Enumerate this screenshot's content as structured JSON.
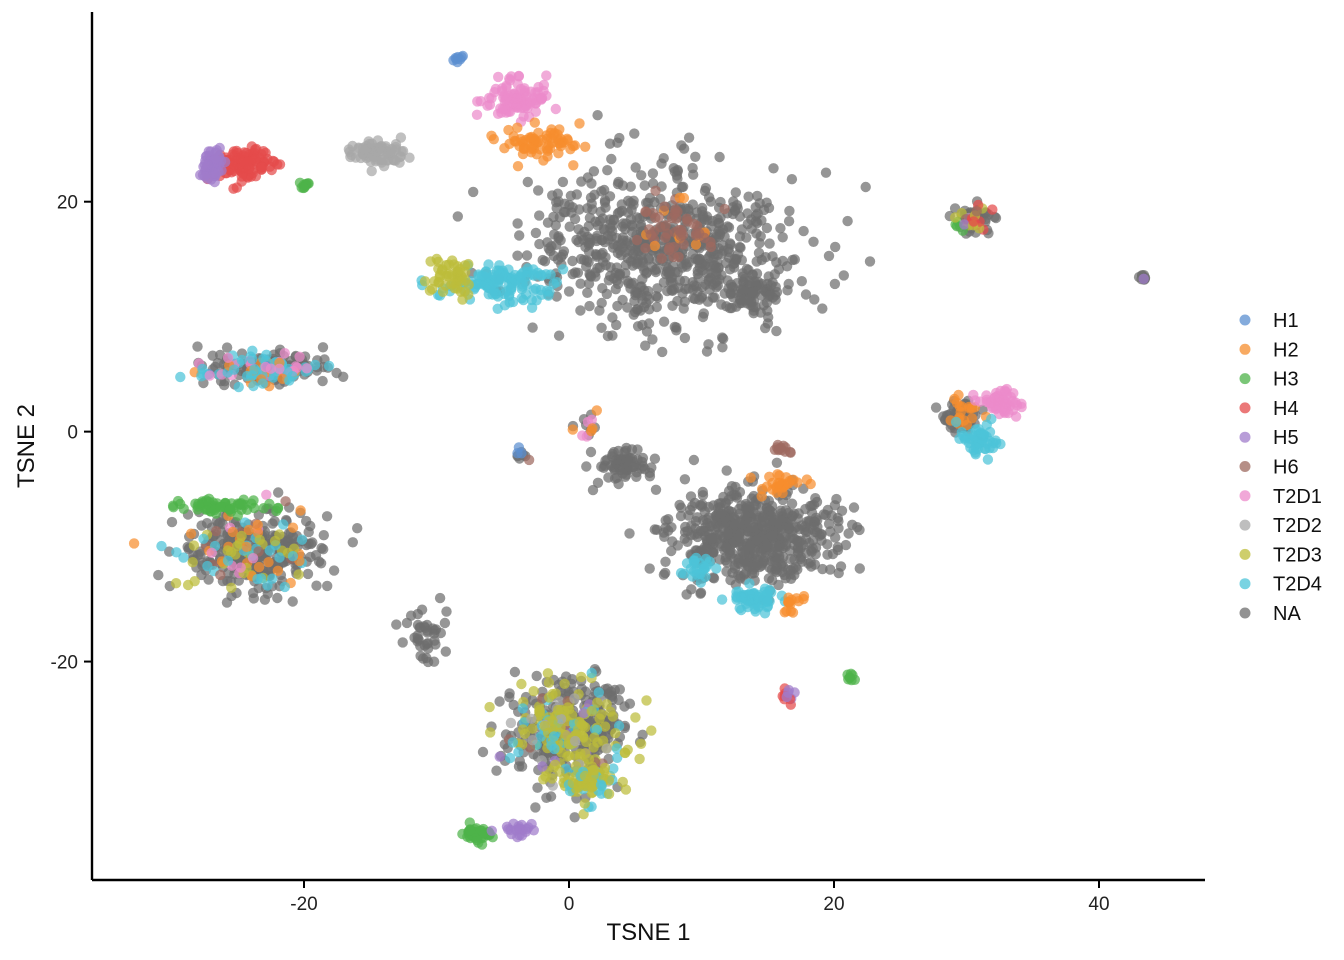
{
  "chart_data": {
    "type": "scatter",
    "title": "",
    "xlabel": "TSNE 1",
    "ylabel": "TSNE 2",
    "xlim": [
      -36,
      48
    ],
    "ylim": [
      -39,
      36.5
    ],
    "xticks": [
      -20,
      0,
      20,
      40
    ],
    "yticks": [
      -20,
      0,
      20
    ],
    "xtick_labels": [
      "-20",
      "0",
      "20",
      "40"
    ],
    "ytick_labels": [
      "-20",
      "0",
      "20"
    ],
    "grid": false,
    "legend": "right",
    "series": [
      {
        "name": "H1",
        "color": "#5B8FD0"
      },
      {
        "name": "H2",
        "color": "#F68D2E"
      },
      {
        "name": "H3",
        "color": "#4DB34A"
      },
      {
        "name": "H4",
        "color": "#E44B4B"
      },
      {
        "name": "H5",
        "color": "#A07CCB"
      },
      {
        "name": "H6",
        "color": "#9E6A5F"
      },
      {
        "name": "T2D1",
        "color": "#EC8BCB"
      },
      {
        "name": "T2D2",
        "color": "#A8A8A8"
      },
      {
        "name": "T2D3",
        "color": "#BDBD3A"
      },
      {
        "name": "T2D4",
        "color": "#4CC4D8"
      },
      {
        "name": "NA",
        "color": "#6E6E6E"
      }
    ],
    "clusters": [
      {
        "x": 7,
        "y": 16,
        "sx": 9,
        "sy": 6,
        "n": 700,
        "mix": {
          "NA": 1
        }
      },
      {
        "x": -5,
        "y": 13,
        "sx": 4,
        "sy": 1.6,
        "n": 130,
        "mix": {
          "T2D4": 1
        }
      },
      {
        "x": -9,
        "y": 13.5,
        "sx": 1.6,
        "sy": 1.5,
        "n": 50,
        "mix": {
          "T2D3": 1
        }
      },
      {
        "x": 8,
        "y": 18,
        "sx": 3,
        "sy": 2.5,
        "n": 60,
        "mix": {
          "H6": 0.8,
          "H2": 0.2
        }
      },
      {
        "x": 14,
        "y": 12,
        "sx": 1.8,
        "sy": 1.8,
        "n": 70,
        "mix": {
          "NA": 1
        }
      },
      {
        "x": -4,
        "y": 29,
        "sx": 2.3,
        "sy": 1.5,
        "n": 90,
        "mix": {
          "T2D1": 1
        }
      },
      {
        "x": -2,
        "y": 25,
        "sx": 3,
        "sy": 1.3,
        "n": 70,
        "mix": {
          "H2": 1
        }
      },
      {
        "x": -8.5,
        "y": 32.3,
        "sx": 0.5,
        "sy": 0.3,
        "n": 8,
        "mix": {
          "H1": 1
        }
      },
      {
        "x": -24.5,
        "y": 23.3,
        "sx": 1.7,
        "sy": 1.3,
        "n": 120,
        "mix": {
          "H4": 1
        }
      },
      {
        "x": -27,
        "y": 23.2,
        "sx": 0.8,
        "sy": 1.1,
        "n": 50,
        "mix": {
          "H5": 1
        }
      },
      {
        "x": -20,
        "y": 21.5,
        "sx": 0.4,
        "sy": 0.4,
        "n": 10,
        "mix": {
          "H3": 1
        }
      },
      {
        "x": -14.5,
        "y": 24.2,
        "sx": 1.8,
        "sy": 1,
        "n": 70,
        "mix": {
          "T2D2": 1
        }
      },
      {
        "x": -23,
        "y": 5.5,
        "sx": 4.5,
        "sy": 1.2,
        "n": 220,
        "mix": {
          "NA": 0.6,
          "T2D4": 0.2,
          "H2": 0.1,
          "T2D1": 0.05,
          "H1": 0.05
        }
      },
      {
        "x": -24,
        "y": -10.5,
        "sx": 5,
        "sy": 3,
        "n": 400,
        "mix": {
          "NA": 0.78,
          "T2D3": 0.07,
          "T2D4": 0.05,
          "H2": 0.04,
          "T2D1": 0.03,
          "H6": 0.03
        }
      },
      {
        "x": -26,
        "y": -6.5,
        "sx": 3.5,
        "sy": 0.6,
        "n": 60,
        "mix": {
          "H3": 1
        }
      },
      {
        "x": 0,
        "y": -26,
        "sx": 3.8,
        "sy": 4,
        "n": 480,
        "mix": {
          "NA": 0.6,
          "T2D3": 0.25,
          "T2D4": 0.07,
          "T2D2": 0.04,
          "H5": 0.02,
          "H6": 0.02
        }
      },
      {
        "x": -7,
        "y": -35,
        "sx": 1,
        "sy": 0.6,
        "n": 40,
        "mix": {
          "H3": 1
        }
      },
      {
        "x": -4,
        "y": -34.5,
        "sx": 1.2,
        "sy": 0.5,
        "n": 20,
        "mix": {
          "H5": 1
        }
      },
      {
        "x": 1.5,
        "y": -30.5,
        "sx": 2,
        "sy": 1.6,
        "n": 80,
        "mix": {
          "T2D3": 0.7,
          "T2D4": 0.3
        }
      },
      {
        "x": -11,
        "y": -17.5,
        "sx": 1.5,
        "sy": 2.5,
        "n": 40,
        "mix": {
          "NA": 1
        }
      },
      {
        "x": 14,
        "y": -9,
        "sx": 5.5,
        "sy": 3.5,
        "n": 600,
        "mix": {
          "NA": 1
        }
      },
      {
        "x": 4,
        "y": -3,
        "sx": 2,
        "sy": 1.5,
        "n": 70,
        "mix": {
          "NA": 1
        }
      },
      {
        "x": 14,
        "y": -14.5,
        "sx": 1.5,
        "sy": 1,
        "n": 60,
        "mix": {
          "T2D4": 1
        }
      },
      {
        "x": 10,
        "y": -12,
        "sx": 1,
        "sy": 1.5,
        "n": 25,
        "mix": {
          "T2D4": 1
        }
      },
      {
        "x": 16,
        "y": -4.5,
        "sx": 1.5,
        "sy": 0.7,
        "n": 30,
        "mix": {
          "H2": 1
        }
      },
      {
        "x": 16,
        "y": -1.5,
        "sx": 0.8,
        "sy": 0.5,
        "n": 12,
        "mix": {
          "H6": 1
        }
      },
      {
        "x": 17,
        "y": -15,
        "sx": 0.7,
        "sy": 1,
        "n": 15,
        "mix": {
          "H2": 1
        }
      },
      {
        "x": 16.7,
        "y": -23,
        "sx": 0.5,
        "sy": 0.5,
        "n": 12,
        "mix": {
          "H4": 0.6,
          "H5": 0.4
        }
      },
      {
        "x": 21.3,
        "y": -21.3,
        "sx": 0.4,
        "sy": 0.5,
        "n": 8,
        "mix": {
          "H3": 1
        }
      },
      {
        "x": 30.5,
        "y": 18.5,
        "sx": 1.2,
        "sy": 1.3,
        "n": 70,
        "mix": {
          "NA": 0.6,
          "T2D3": 0.15,
          "H4": 0.1,
          "H5": 0.05,
          "H3": 0.05,
          "H6": 0.05
        }
      },
      {
        "x": 29.5,
        "y": 1.5,
        "sx": 1.5,
        "sy": 1.3,
        "n": 80,
        "mix": {
          "NA": 0.7,
          "H2": 0.3
        }
      },
      {
        "x": 32.5,
        "y": 2.5,
        "sx": 1.3,
        "sy": 0.9,
        "n": 60,
        "mix": {
          "T2D1": 1
        }
      },
      {
        "x": 31,
        "y": -0.5,
        "sx": 1.3,
        "sy": 1.2,
        "n": 50,
        "mix": {
          "T2D4": 1
        }
      },
      {
        "x": 43.3,
        "y": 13.5,
        "sx": 0.3,
        "sy": 0.5,
        "n": 10,
        "mix": {
          "NA": 0.8,
          "H5": 0.2
        }
      },
      {
        "x": -3.5,
        "y": -2,
        "sx": 0.6,
        "sy": 0.8,
        "n": 10,
        "mix": {
          "NA": 0.6,
          "H1": 0.2,
          "H6": 0.2
        }
      },
      {
        "x": 1.5,
        "y": 0.5,
        "sx": 1.5,
        "sy": 1.3,
        "n": 15,
        "mix": {
          "NA": 0.5,
          "T2D1": 0.3,
          "H2": 0.2
        }
      }
    ]
  }
}
